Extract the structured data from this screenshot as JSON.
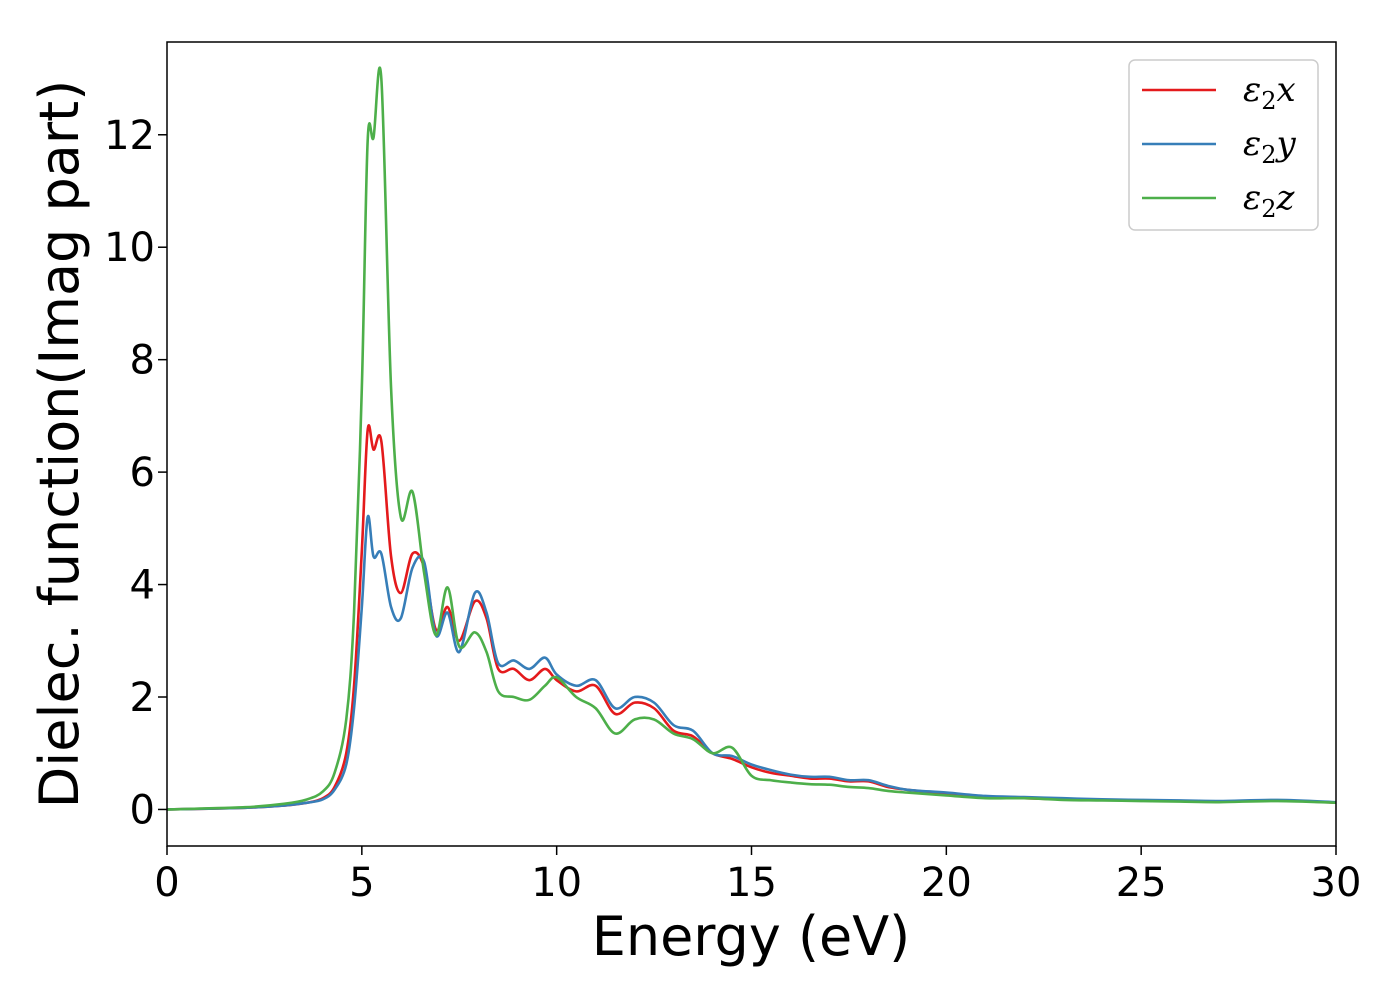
{
  "chart_data": {
    "type": "line",
    "title": "",
    "xlabel": "Energy (eV)",
    "ylabel": "Dielec. function(Imag part)",
    "xlim": [
      0,
      30
    ],
    "ylim": [
      -0.65,
      13.65
    ],
    "xticks": [
      "0",
      "5",
      "10",
      "15",
      "20",
      "25",
      "30"
    ],
    "yticks": [
      "0",
      "2",
      "4",
      "6",
      "8",
      "10",
      "12"
    ],
    "grid": false,
    "legend_position": "top-right",
    "series": [
      {
        "name": "ε₂x",
        "legend_main": "ε",
        "legend_sub": "2",
        "legend_var": "x",
        "color": "#e41a1c",
        "x": [
          0,
          2,
          3,
          3.6,
          4.0,
          4.3,
          4.6,
          4.8,
          5.0,
          5.15,
          5.3,
          5.5,
          5.75,
          6.0,
          6.3,
          6.6,
          6.9,
          7.2,
          7.5,
          7.9,
          8.2,
          8.5,
          8.9,
          9.3,
          9.7,
          10.0,
          10.5,
          11.0,
          11.5,
          12.0,
          12.5,
          13.0,
          13.5,
          14.0,
          14.5,
          15.0,
          15.5,
          16.0,
          16.5,
          17.0,
          17.5,
          18.0,
          18.5,
          19.0,
          20.0,
          21.0,
          22.0,
          23.0,
          24.0,
          25.0,
          26.0,
          27.0,
          28.5,
          30.0
        ],
        "y": [
          0,
          0.03,
          0.07,
          0.12,
          0.2,
          0.4,
          1.0,
          2.2,
          4.6,
          6.75,
          6.4,
          6.55,
          4.5,
          3.85,
          4.55,
          4.3,
          3.2,
          3.6,
          3.0,
          3.7,
          3.4,
          2.5,
          2.5,
          2.3,
          2.5,
          2.3,
          2.1,
          2.2,
          1.7,
          1.9,
          1.8,
          1.4,
          1.3,
          1.0,
          0.9,
          0.75,
          0.65,
          0.6,
          0.55,
          0.55,
          0.5,
          0.5,
          0.4,
          0.35,
          0.28,
          0.22,
          0.2,
          0.18,
          0.17,
          0.16,
          0.15,
          0.14,
          0.16,
          0.12
        ]
      },
      {
        "name": "ε₂y",
        "legend_main": "ε",
        "legend_sub": "2",
        "legend_var": "y",
        "color": "#377eb8",
        "x": [
          0,
          2,
          3,
          3.6,
          4.0,
          4.3,
          4.6,
          4.8,
          5.0,
          5.15,
          5.3,
          5.5,
          5.75,
          6.0,
          6.3,
          6.6,
          6.9,
          7.2,
          7.5,
          7.9,
          8.2,
          8.5,
          8.9,
          9.3,
          9.7,
          10.0,
          10.5,
          11.0,
          11.5,
          12.0,
          12.5,
          13.0,
          13.5,
          14.0,
          14.5,
          15.0,
          15.5,
          16.0,
          16.5,
          17.0,
          17.5,
          18.0,
          18.5,
          19.0,
          20.0,
          21.0,
          22.0,
          23.0,
          24.0,
          25.0,
          26.0,
          27.0,
          28.5,
          30.0
        ],
        "y": [
          0,
          0.03,
          0.07,
          0.12,
          0.18,
          0.35,
          0.8,
          1.8,
          3.6,
          5.2,
          4.5,
          4.55,
          3.6,
          3.4,
          4.3,
          4.4,
          3.1,
          3.5,
          2.8,
          3.85,
          3.5,
          2.6,
          2.65,
          2.5,
          2.7,
          2.4,
          2.2,
          2.3,
          1.8,
          2.0,
          1.9,
          1.5,
          1.4,
          1.0,
          0.95,
          0.8,
          0.7,
          0.62,
          0.58,
          0.58,
          0.52,
          0.52,
          0.42,
          0.35,
          0.3,
          0.24,
          0.22,
          0.2,
          0.18,
          0.17,
          0.16,
          0.15,
          0.17,
          0.13
        ]
      },
      {
        "name": "ε₂z",
        "legend_main": "ε",
        "legend_sub": "2",
        "legend_var": "z",
        "color": "#4daf4a",
        "x": [
          0,
          2,
          3,
          3.6,
          4.0,
          4.3,
          4.6,
          4.8,
          5.0,
          5.15,
          5.3,
          5.5,
          5.75,
          6.0,
          6.3,
          6.6,
          6.9,
          7.2,
          7.5,
          7.9,
          8.2,
          8.5,
          8.9,
          9.3,
          9.7,
          10.0,
          10.5,
          11.0,
          11.5,
          12.0,
          12.5,
          13.0,
          13.5,
          14.0,
          14.5,
          15.0,
          15.5,
          16.0,
          16.5,
          17.0,
          17.5,
          18.0,
          18.5,
          19.0,
          20.0,
          21.0,
          22.0,
          23.0,
          24.0,
          25.0,
          26.0,
          27.0,
          28.5,
          30.0
        ],
        "y": [
          0,
          0.04,
          0.1,
          0.18,
          0.32,
          0.65,
          1.6,
          3.5,
          7.5,
          11.9,
          11.95,
          13.0,
          7.5,
          5.2,
          5.65,
          4.2,
          3.1,
          3.95,
          2.9,
          3.15,
          2.8,
          2.1,
          2.0,
          1.95,
          2.2,
          2.35,
          2.0,
          1.8,
          1.35,
          1.6,
          1.6,
          1.35,
          1.25,
          1.0,
          1.1,
          0.6,
          0.52,
          0.48,
          0.45,
          0.44,
          0.4,
          0.38,
          0.33,
          0.3,
          0.25,
          0.2,
          0.2,
          0.17,
          0.16,
          0.15,
          0.14,
          0.13,
          0.15,
          0.12
        ]
      }
    ]
  }
}
